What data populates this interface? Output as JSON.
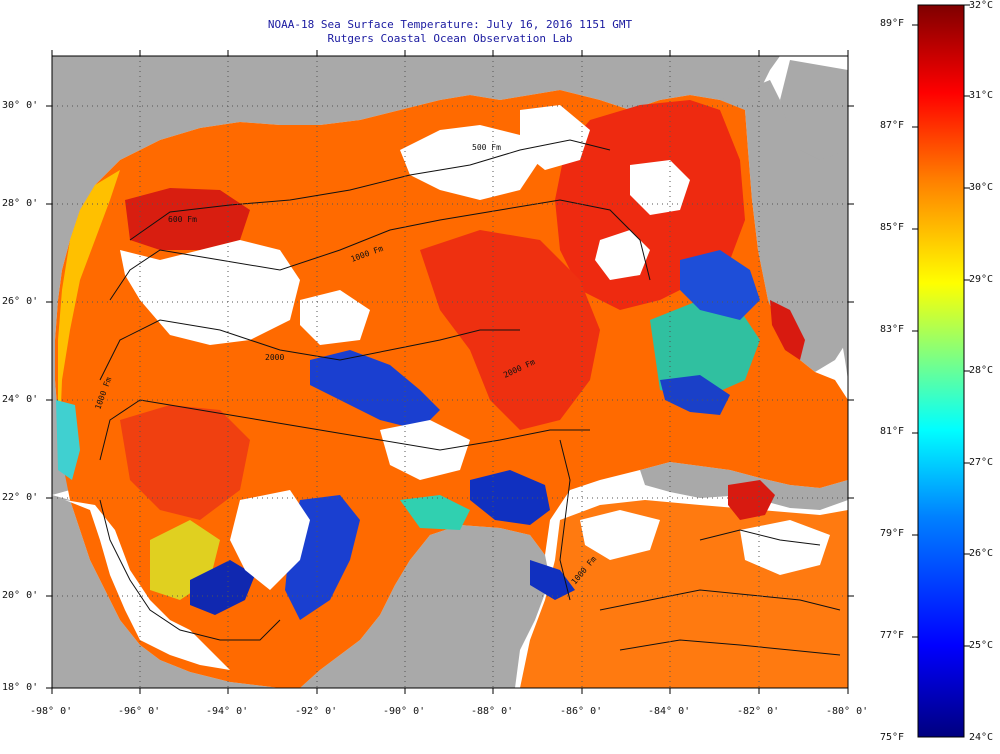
{
  "header": {
    "title": "NOAA-18 Sea Surface Temperature:  July 16, 2016 1151 GMT",
    "subtitle": "Rutgers Coastal Ocean Observation Lab"
  },
  "axes": {
    "lat_labels": [
      "30° 0'",
      "28° 0'",
      "26° 0'",
      "24° 0'",
      "22° 0'",
      "20° 0'",
      "18° 0'"
    ],
    "lon_labels": [
      "-98° 0'",
      "-96° 0'",
      "-94° 0'",
      "-92° 0'",
      "-90° 0'",
      "-88° 0'",
      "-86° 0'",
      "-84° 0'",
      "-82° 0'",
      "-80° 0'"
    ]
  },
  "contours": {
    "labels": [
      "600 Fm",
      "500 Fm",
      "1000 Fm",
      "1000 Fm",
      "2000",
      "2000 Fm",
      "1000 Fm"
    ]
  },
  "colorbar": {
    "fahrenheit_labels": [
      "89°F",
      "87°F",
      "85°F",
      "83°F",
      "81°F",
      "79°F",
      "77°F",
      "75°F"
    ],
    "celsius_labels": [
      "32°C",
      "31°C",
      "30°C",
      "29°C",
      "28°C",
      "27°C",
      "26°C",
      "25°C",
      "24°C"
    ],
    "stops": [
      "#00007f",
      "#0000ff",
      "#0080ff",
      "#00ffff",
      "#80ff80",
      "#ffff00",
      "#ff8000",
      "#ff0000",
      "#7f0000"
    ]
  },
  "colors": {
    "land": "#a9a9a9",
    "cloud": "#ffffff",
    "warm": "#ff6a00",
    "hot": "#ee2a10",
    "cool": "#1a3fd0"
  }
}
